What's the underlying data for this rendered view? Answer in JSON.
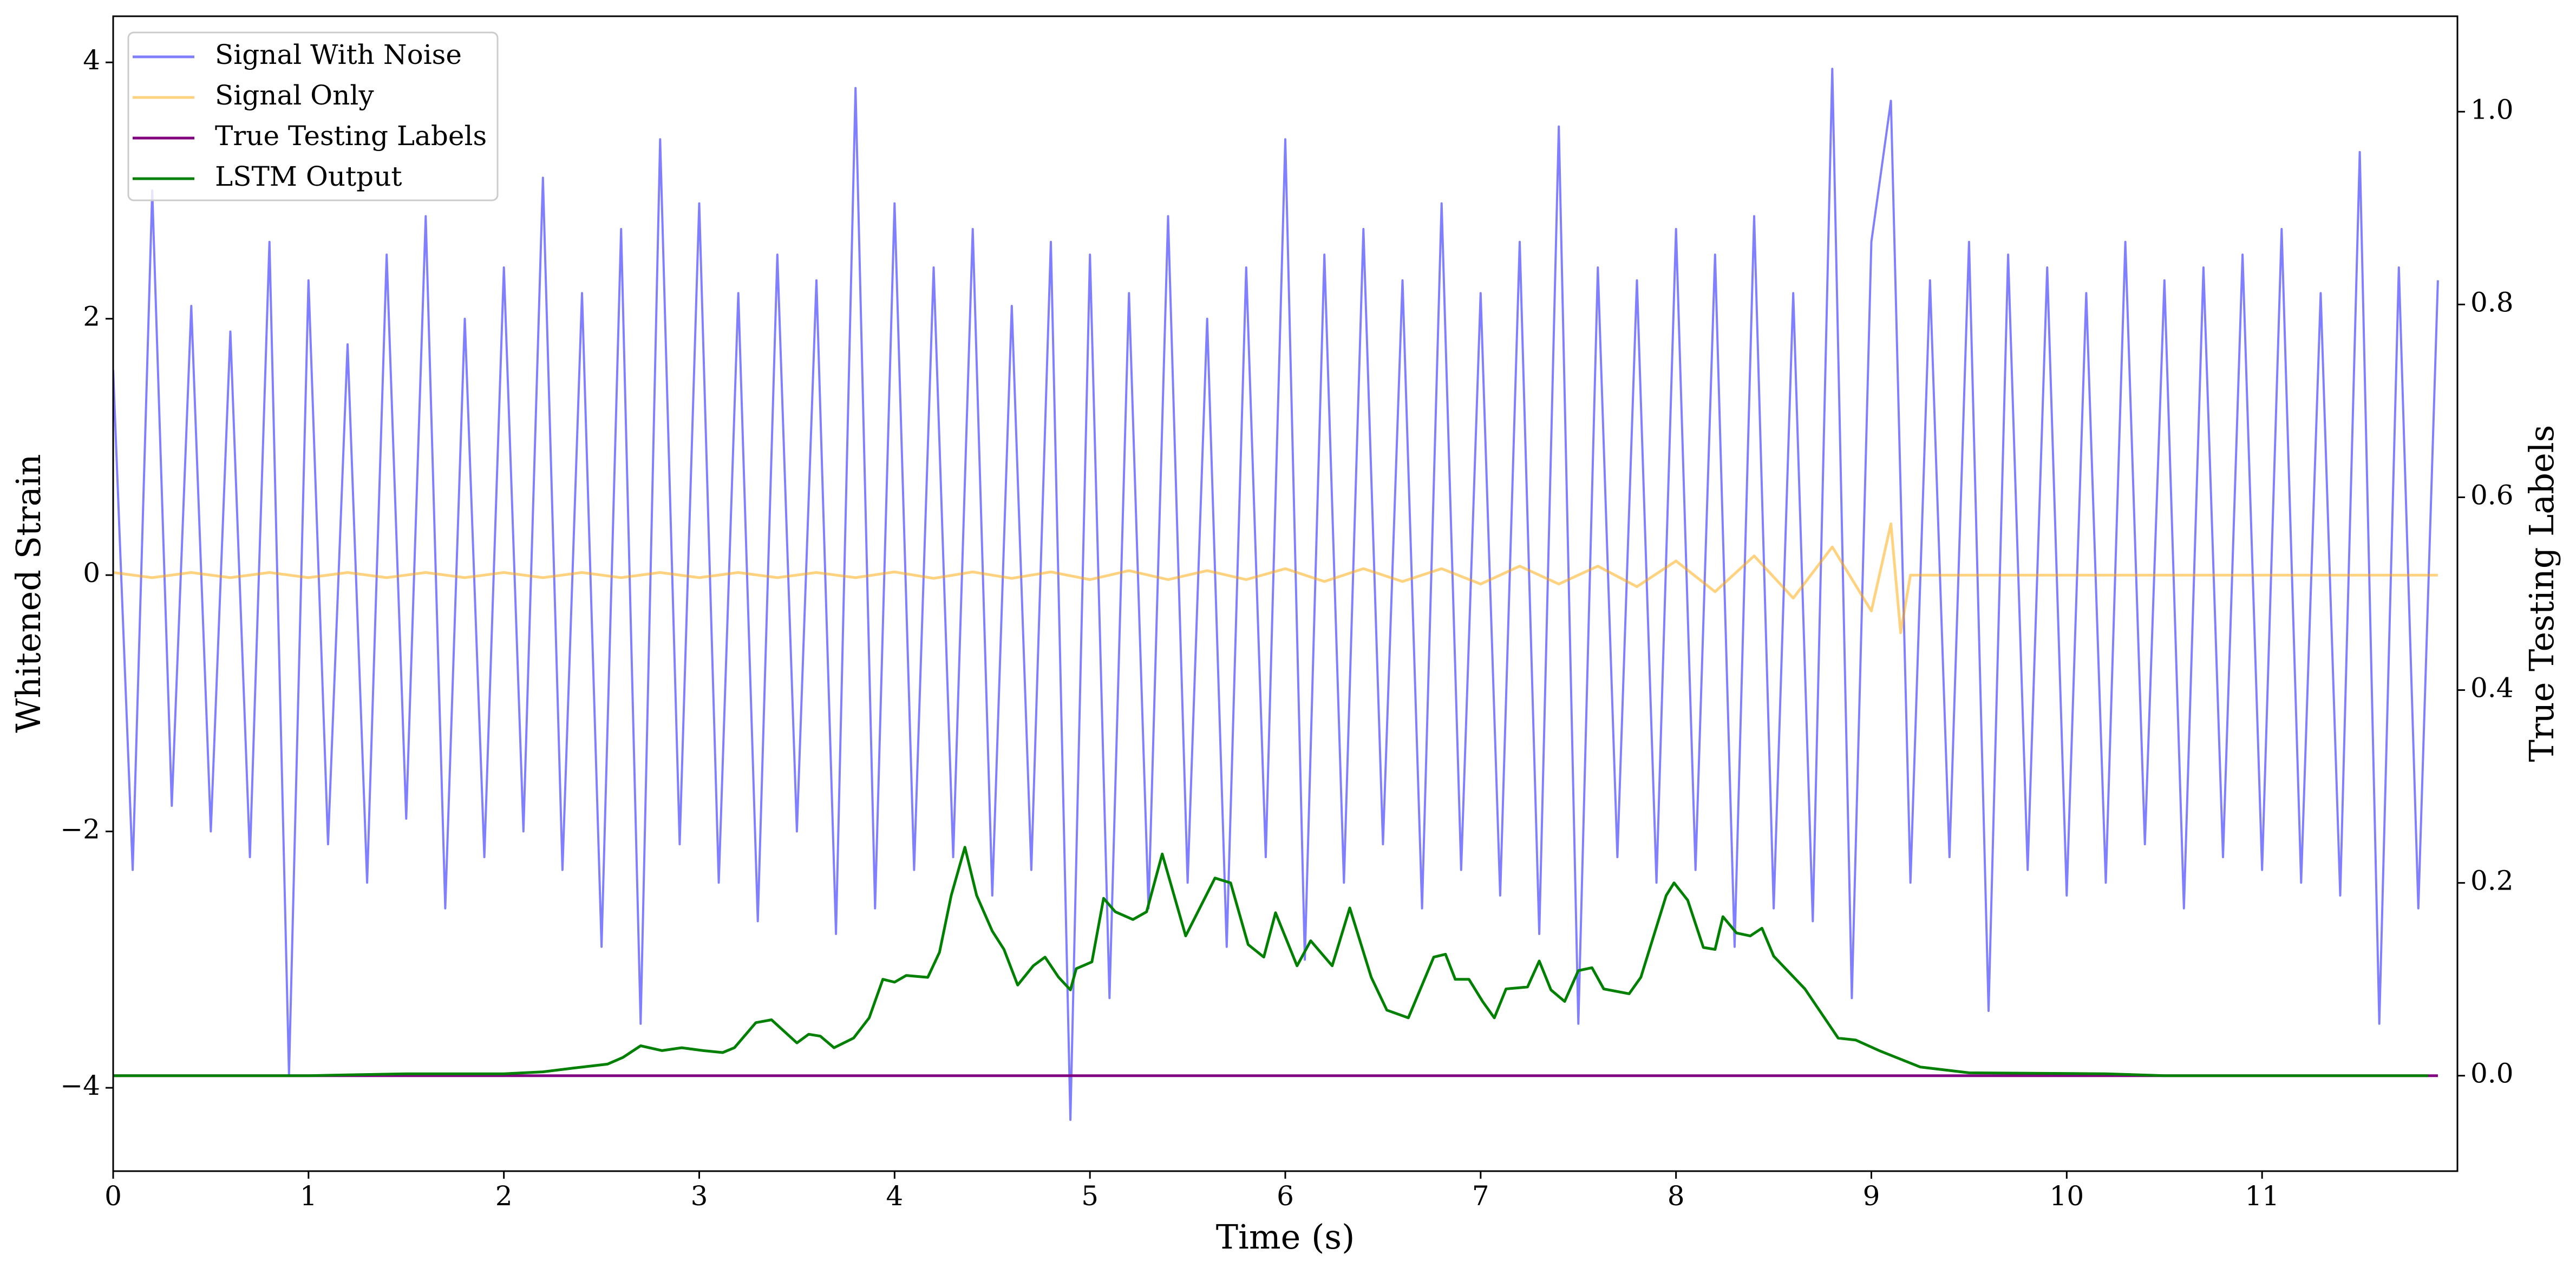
{
  "chart_data": {
    "type": "line",
    "xlabel": "Time (s)",
    "ylabel": "Whitened Strain",
    "y2label": "True Testing Labels",
    "xlim": [
      0,
      12
    ],
    "ylim": [
      -4.65,
      4.36
    ],
    "y2lim": [
      -0.099,
      1.099
    ],
    "xticks": [
      0,
      1,
      2,
      3,
      4,
      5,
      6,
      7,
      8,
      9,
      10,
      11
    ],
    "yticks": [
      {
        "value": -4,
        "label": "−4"
      },
      {
        "value": -2,
        "label": "−2"
      },
      0,
      2,
      4
    ],
    "y2ticks": [
      {
        "value": 0,
        "label": "0.0"
      },
      0.2,
      0.4,
      0.6,
      0.8,
      {
        "value": 1,
        "label": "1.0"
      }
    ],
    "grid": false,
    "legend": "upper left",
    "series": [
      {
        "name": "Signal With Noise",
        "color": "#0000ff",
        "alpha": 0.5,
        "axis": "y",
        "x": [
          0,
          0.1,
          0.2,
          0.3,
          0.4,
          0.5,
          0.6,
          0.7,
          0.8,
          0.9,
          1,
          1.1,
          1.2,
          1.3,
          1.4,
          1.5,
          1.6,
          1.7,
          1.8,
          1.9,
          2,
          2.1,
          2.2,
          2.3,
          2.4,
          2.5,
          2.6,
          2.7,
          2.8,
          2.9,
          3,
          3.1,
          3.2,
          3.3,
          3.4,
          3.5,
          3.6,
          3.7,
          3.8,
          3.9,
          4,
          4.1,
          4.2,
          4.3,
          4.4,
          4.5,
          4.6,
          4.7,
          4.8,
          4.9,
          5,
          5.1,
          5.2,
          5.3,
          5.4,
          5.5,
          5.6,
          5.7,
          5.8,
          5.9,
          6,
          6.1,
          6.2,
          6.3,
          6.4,
          6.5,
          6.6,
          6.7,
          6.8,
          6.9,
          7,
          7.1,
          7.2,
          7.3,
          7.4,
          7.5,
          7.6,
          7.7,
          7.8,
          7.9,
          8,
          8.1,
          8.2,
          8.3,
          8.4,
          8.5,
          8.6,
          8.7,
          8.8,
          8.9,
          9,
          9.1,
          9.2,
          9.3,
          9.4,
          9.5,
          9.6,
          9.7,
          9.8,
          9.9,
          10,
          10.1,
          10.2,
          10.3,
          10.4,
          10.5,
          10.6,
          10.7,
          10.8,
          10.9,
          11,
          11.1,
          11.2,
          11.3,
          11.4,
          11.5,
          11.6,
          11.7,
          11.8,
          11.9
        ],
        "values": [
          1.6,
          -2.3,
          3.0,
          -1.8,
          2.1,
          -2.0,
          1.9,
          -2.2,
          2.6,
          -3.9,
          2.3,
          -2.1,
          1.8,
          -2.4,
          2.5,
          -1.9,
          2.8,
          -2.6,
          2.0,
          -2.2,
          2.4,
          -2.0,
          3.1,
          -2.3,
          2.2,
          -2.9,
          2.7,
          -3.5,
          3.4,
          -2.1,
          2.9,
          -2.4,
          2.2,
          -2.7,
          2.5,
          -2.0,
          2.3,
          -2.8,
          3.8,
          -2.6,
          2.9,
          -2.3,
          2.4,
          -2.2,
          2.7,
          -2.5,
          2.1,
          -2.3,
          2.6,
          -4.25,
          2.5,
          -3.3,
          2.2,
          -2.6,
          2.8,
          -2.4,
          2.0,
          -2.9,
          2.4,
          -2.2,
          3.4,
          -3.0,
          2.5,
          -2.4,
          2.7,
          -2.1,
          2.3,
          -2.6,
          2.9,
          -2.3,
          2.2,
          -2.5,
          2.6,
          -2.8,
          3.5,
          -3.5,
          2.4,
          -2.2,
          2.3,
          -2.4,
          2.7,
          -2.3,
          2.5,
          -2.9,
          2.8,
          -2.6,
          2.2,
          -2.7,
          3.95,
          -3.3,
          2.6,
          3.7,
          -2.4,
          2.3,
          -2.2,
          2.6,
          -3.4,
          2.5,
          -2.3,
          2.4,
          -2.5,
          2.2,
          -2.4,
          2.6,
          -2.1,
          2.3,
          -2.6,
          2.4,
          -2.2,
          2.5,
          -2.3,
          2.7,
          -2.4,
          2.2,
          -2.5,
          3.3,
          -3.5,
          2.4,
          -2.6,
          2.3
        ]
      },
      {
        "name": "Signal Only",
        "color": "#ffa500",
        "alpha": 0.5,
        "axis": "y",
        "x": [
          0,
          0.2,
          0.4,
          0.6,
          0.8,
          1,
          1.2,
          1.4,
          1.6,
          1.8,
          2,
          2.2,
          2.4,
          2.6,
          2.8,
          3,
          3.2,
          3.4,
          3.6,
          3.8,
          4,
          4.2,
          4.4,
          4.6,
          4.8,
          5,
          5.2,
          5.4,
          5.6,
          5.8,
          6,
          6.2,
          6.4,
          6.6,
          6.8,
          7,
          7.2,
          7.4,
          7.6,
          7.8,
          8,
          8.2,
          8.4,
          8.6,
          8.8,
          9,
          9.1,
          9.15,
          9.2,
          11.9
        ],
        "values": [
          0.02,
          -0.02,
          0.02,
          -0.02,
          0.02,
          -0.02,
          0.02,
          -0.02,
          0.02,
          -0.02,
          0.02,
          -0.02,
          0.02,
          -0.02,
          0.02,
          -0.02,
          0.02,
          -0.02,
          0.02,
          -0.02,
          0.025,
          -0.025,
          0.025,
          -0.025,
          0.025,
          -0.035,
          0.035,
          -0.035,
          0.035,
          -0.035,
          0.05,
          -0.05,
          0.05,
          -0.05,
          0.05,
          -0.07,
          0.07,
          -0.07,
          0.07,
          -0.09,
          0.11,
          -0.13,
          0.15,
          -0.18,
          0.22,
          -0.28,
          0.4,
          -0.45,
          0,
          0
        ]
      },
      {
        "name": "True Testing Labels",
        "color": "#800080",
        "axis": "y2",
        "x": [
          0,
          11.9
        ],
        "values": [
          0,
          0
        ]
      },
      {
        "name": "LSTM Output",
        "color": "#008000",
        "axis": "y2",
        "x": [
          0,
          1.0,
          1.5,
          2.0,
          2.2,
          2.36,
          2.53,
          2.61,
          2.7,
          2.81,
          2.91,
          3.02,
          3.12,
          3.18,
          3.29,
          3.37,
          3.5,
          3.56,
          3.62,
          3.69,
          3.79,
          3.87,
          3.94,
          4.0,
          4.06,
          4.17,
          4.23,
          4.29,
          4.36,
          4.42,
          4.5,
          4.56,
          4.63,
          4.71,
          4.77,
          4.84,
          4.9,
          4.93,
          5.01,
          5.07,
          5.13,
          5.22,
          5.29,
          5.37,
          5.49,
          5.64,
          5.72,
          5.81,
          5.89,
          5.95,
          6.06,
          6.13,
          6.24,
          6.33,
          6.44,
          6.52,
          6.63,
          6.76,
          6.82,
          6.87,
          6.94,
          7.01,
          7.07,
          7.13,
          7.24,
          7.3,
          7.36,
          7.43,
          7.5,
          7.57,
          7.63,
          7.76,
          7.82,
          7.95,
          7.99,
          8.06,
          8.14,
          8.2,
          8.24,
          8.31,
          8.38,
          8.44,
          8.5,
          8.66,
          8.76,
          8.83,
          8.92,
          9.04,
          9.25,
          9.5,
          10.2,
          10.5,
          11.85
        ],
        "values": [
          0,
          0,
          0.002,
          0.002,
          0.004,
          0.008,
          0.012,
          0.019,
          0.031,
          0.026,
          0.029,
          0.026,
          0.024,
          0.029,
          0.055,
          0.058,
          0.034,
          0.043,
          0.041,
          0.029,
          0.039,
          0.06,
          0.1,
          0.097,
          0.104,
          0.102,
          0.128,
          0.187,
          0.237,
          0.187,
          0.15,
          0.131,
          0.094,
          0.114,
          0.123,
          0.102,
          0.089,
          0.111,
          0.118,
          0.184,
          0.17,
          0.162,
          0.17,
          0.23,
          0.145,
          0.205,
          0.2,
          0.136,
          0.123,
          0.169,
          0.114,
          0.14,
          0.114,
          0.174,
          0.102,
          0.068,
          0.06,
          0.123,
          0.126,
          0.1,
          0.1,
          0.077,
          0.06,
          0.09,
          0.092,
          0.119,
          0.089,
          0.077,
          0.109,
          0.112,
          0.09,
          0.085,
          0.102,
          0.187,
          0.2,
          0.182,
          0.133,
          0.131,
          0.165,
          0.148,
          0.145,
          0.153,
          0.124,
          0.09,
          0.06,
          0.039,
          0.037,
          0.026,
          0.009,
          0.003,
          0.002,
          0,
          0
        ]
      }
    ]
  }
}
